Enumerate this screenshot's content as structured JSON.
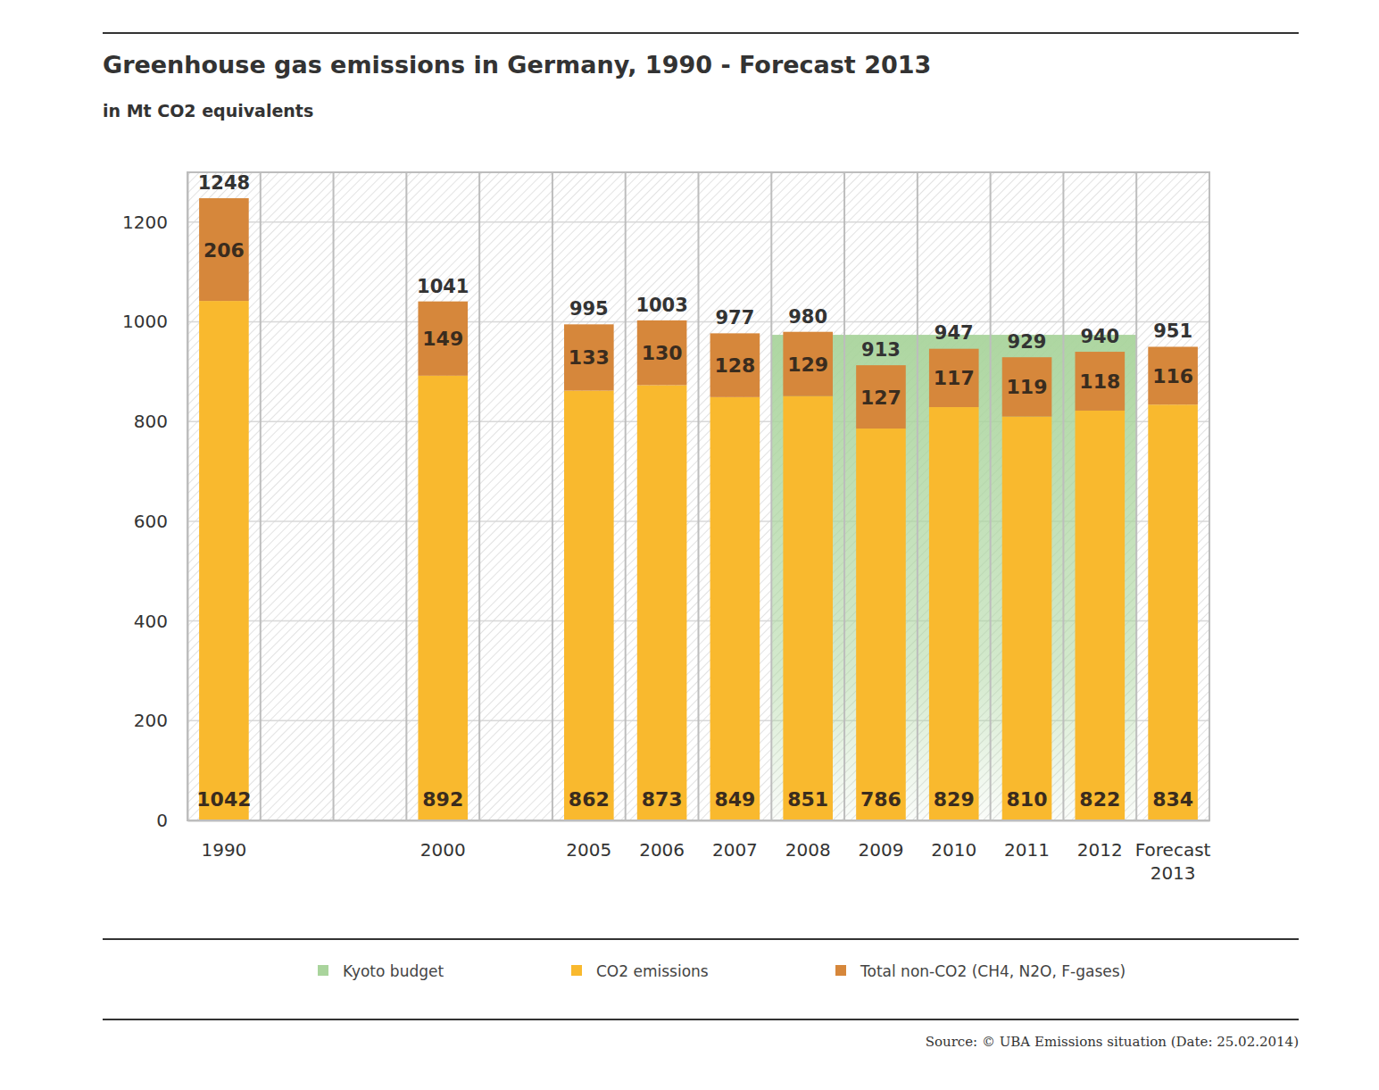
{
  "chart_data": {
    "type": "bar",
    "title": "Greenhouse gas emissions in Germany, 1990 - Forecast 2013",
    "subtitle": "in Mt CO2 equivalents",
    "categories": [
      "1990",
      null,
      null,
      "2000",
      null,
      "2005",
      "2006",
      "2007",
      "2008",
      "2009",
      "2010",
      "2011",
      "2012",
      "Forecast 2013"
    ],
    "series": [
      {
        "name": "CO2 emissions",
        "color": "#f9b92e",
        "values": [
          1042,
          null,
          null,
          892,
          null,
          862,
          873,
          849,
          851,
          786,
          829,
          810,
          822,
          834
        ]
      },
      {
        "name": "Total non-CO2 (CH4, N2O, F-gases)",
        "color": "#d6873b",
        "values": [
          206,
          null,
          null,
          149,
          null,
          133,
          130,
          128,
          129,
          127,
          117,
          119,
          118,
          116
        ]
      }
    ],
    "totals": [
      1248,
      null,
      null,
      1041,
      null,
      995,
      1003,
      977,
      980,
      913,
      947,
      929,
      940,
      951
    ],
    "kyoto_budget": {
      "name": "Kyoto budget",
      "value": 974,
      "start": "2008",
      "end": "2012",
      "color": "#a9d49c"
    },
    "stacked": true,
    "data_labels": true,
    "ylim": [
      0,
      1300
    ],
    "yticks": [
      0,
      200,
      400,
      600,
      800,
      1000,
      1200
    ],
    "grid": true,
    "legend": "bottom",
    "source": "Source: © UBA Emissions situation (Date: 25.02.2014)"
  }
}
